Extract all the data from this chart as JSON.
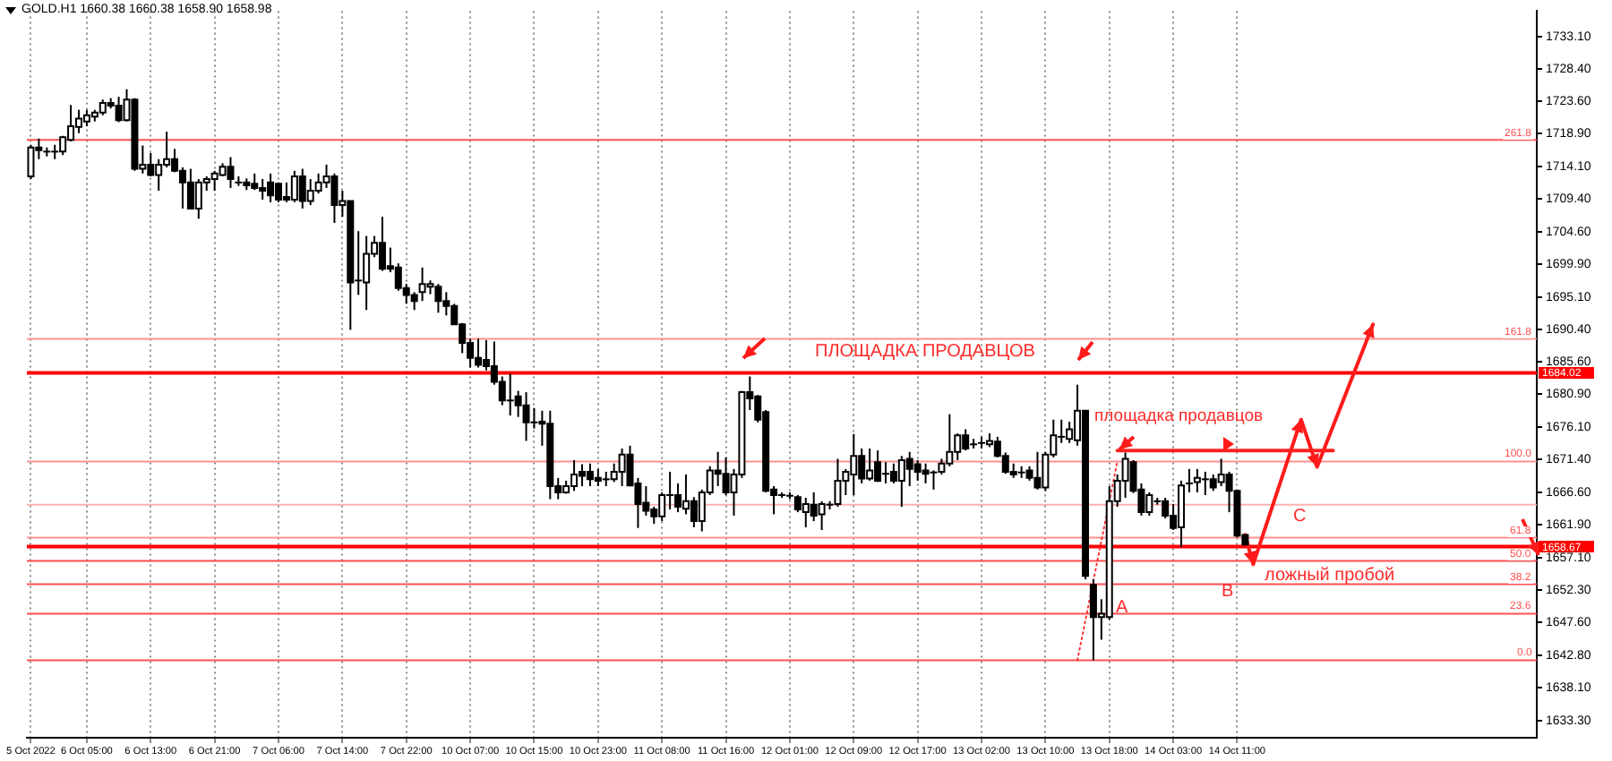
{
  "chart_data": {
    "type": "candlestick",
    "title": "GOLD.H1 1660.38 1660.38 1658.90 1658.98",
    "categories": [
      "5 Oct 2022",
      null,
      null,
      null,
      null,
      null,
      null,
      "6 Oct 05:00",
      null,
      null,
      null,
      null,
      null,
      null,
      null,
      "6 Oct 13:00",
      null,
      null,
      null,
      null,
      null,
      null,
      null,
      "6 Oct 21:00",
      null,
      null,
      null,
      null,
      null,
      null,
      null,
      "7 Oct 06:00",
      null,
      null,
      null,
      null,
      null,
      null,
      null,
      "7 Oct 14:00",
      null,
      null,
      null,
      null,
      null,
      null,
      null,
      "7 Oct 22:00",
      null,
      null,
      null,
      null,
      null,
      null,
      null,
      "10 Oct 07:00",
      null,
      null,
      null,
      null,
      null,
      null,
      null,
      "10 Oct 15:00",
      null,
      null,
      null,
      null,
      null,
      null,
      null,
      "10 Oct 23:00",
      null,
      null,
      null,
      null,
      null,
      null,
      null,
      "11 Oct 08:00",
      null,
      null,
      null,
      null,
      null,
      null,
      null,
      "11 Oct 16:00",
      null,
      null,
      null,
      null,
      null,
      null,
      null,
      "12 Oct 01:00",
      null,
      null,
      null,
      null,
      null,
      null,
      null,
      "12 Oct 09:00",
      null,
      null,
      null,
      null,
      null,
      null,
      null,
      "12 Oct 17:00",
      null,
      null,
      null,
      null,
      null,
      null,
      null,
      "13 Oct 02:00",
      null,
      null,
      null,
      null,
      null,
      null,
      null,
      "13 Oct 10:00",
      null,
      null,
      null,
      null,
      null,
      null,
      null,
      "13 Oct 18:00",
      null,
      null,
      null,
      null,
      null,
      null,
      null,
      "14 Oct 03:00",
      null,
      null,
      null,
      null,
      null,
      null,
      null,
      "14 Oct 11:00",
      null,
      null,
      null,
      null,
      null,
      null,
      null,
      null,
      null,
      null,
      null,
      null,
      null,
      null,
      null,
      null,
      null,
      null,
      null,
      null,
      null,
      null,
      null,
      null,
      null,
      null,
      null,
      null,
      null,
      null,
      null,
      null,
      null,
      null,
      null,
      null,
      null
    ],
    "color": "#000000",
    "colors": [
      "#ffffff",
      "#000000",
      "#000000",
      "#000000",
      "#ffffff",
      "#ffffff",
      "#ffffff",
      "#ffffff",
      "#ffffff",
      "#ffffff",
      "#000000",
      "#000000",
      "#ffffff",
      "#000000",
      "#ffffff",
      "#000000",
      "#ffffff",
      "#ffffff",
      "#000000",
      "#000000",
      "#000000",
      "#ffffff",
      "#ffffff",
      "#ffffff",
      "#ffffff",
      "#000000",
      "#000000",
      "#000000",
      "#000000",
      "#000000",
      "#000000",
      "#000000",
      "#000000",
      "#ffffff",
      "#000000",
      "#ffffff",
      "#ffffff",
      "#ffffff",
      "#000000",
      "#ffffff",
      "#000000",
      "#000000",
      "#ffffff",
      "#ffffff",
      "#000000",
      "#000000",
      "#000000",
      "#000000",
      "#000000",
      "#ffffff",
      "#ffffff",
      "#000000",
      "#000000",
      "#000000",
      "#000000",
      "#000000",
      "#000000",
      "#000000",
      "#000000",
      "#000000",
      "#000000",
      "#000000",
      "#000000",
      "#000000",
      "#000000",
      "#000000",
      "#000000",
      "#ffffff",
      "#ffffff",
      "#000000",
      "#000000",
      "#000000",
      "#000000",
      "#ffffff",
      "#ffffff",
      "#000000",
      "#000000",
      "#000000",
      "#000000",
      "#ffffff",
      "#000000",
      "#000000",
      "#ffffff",
      "#000000",
      "#ffffff",
      "#ffffff",
      "#000000",
      "#000000",
      "#ffffff",
      "#ffffff",
      "#000000",
      "#000000",
      "#000000",
      "#000000",
      "#000000",
      "#000000",
      "#000000",
      "#ffffff",
      "#000000",
      "#ffffff",
      "#000000",
      "#ffffff",
      "#ffffff",
      "#ffffff",
      "#000000",
      "#ffffff",
      "#000000",
      "#000000",
      "#000000",
      "#ffffff",
      "#000000",
      "#000000",
      "#000000",
      "#000000",
      "#ffffff",
      "#ffffff",
      "#ffffff",
      "#000000",
      "#000000",
      "#000000",
      "#ffffff",
      "#000000",
      "#000000",
      "#000000",
      "#000000",
      "#000000",
      "#000000",
      "#ffffff",
      "#ffffff",
      "#000000",
      "#ffffff",
      "#ffffff",
      "#000000",
      "#000000",
      "#ffffff",
      "#ffffff",
      "#ffffff",
      "#ffffff",
      "#000000",
      "#000000",
      "#ffffff",
      "#000000",
      "#000000",
      "#000000",
      "#ffffff",
      "#000000",
      "#ffffff",
      "#000000",
      "#000000",
      "#ffffff",
      "#000000",
      "#000000",
      "#000000",
      null,
      null,
      null,
      null,
      null,
      null,
      null,
      null,
      null,
      null,
      null,
      null,
      null,
      null,
      null,
      null,
      null,
      null,
      null,
      null,
      null,
      null,
      null,
      null,
      null,
      null,
      null,
      null,
      null,
      null,
      null,
      null,
      null,
      null,
      null,
      null
    ],
    "ohlc": [
      [
        1712.7,
        1717.3,
        1712.3,
        1716.9
      ],
      [
        1716.9,
        1718.2,
        1715.2,
        1716.5
      ],
      [
        1716.3,
        1716.9,
        1715.6,
        1716.3
      ],
      [
        1716.3,
        1717.3,
        1715.2,
        1716.3
      ],
      [
        1716.3,
        1718.6,
        1715.8,
        1718.4
      ],
      [
        1718.0,
        1723.1,
        1717.8,
        1720.0
      ],
      [
        1719.9,
        1722.4,
        1719.0,
        1721.1
      ],
      [
        1720.7,
        1722.4,
        1720.0,
        1721.6
      ],
      [
        1721.4,
        1722.4,
        1720.7,
        1722.0
      ],
      [
        1722.0,
        1723.9,
        1721.6,
        1723.4
      ],
      [
        1723.4,
        1724.1,
        1722.6,
        1723.0
      ],
      [
        1723.0,
        1724.3,
        1720.6,
        1720.9
      ],
      [
        1720.9,
        1725.4,
        1720.7,
        1723.9
      ],
      [
        1723.9,
        1724.1,
        1713.5,
        1713.8
      ],
      [
        1713.8,
        1717.2,
        1713.1,
        1714.4
      ],
      [
        1714.4,
        1716.1,
        1712.7,
        1712.9
      ],
      [
        1712.9,
        1715.2,
        1710.6,
        1714.4
      ],
      [
        1714.4,
        1719.2,
        1714.0,
        1715.2
      ],
      [
        1715.2,
        1716.7,
        1713.3,
        1713.5
      ],
      [
        1713.5,
        1714.0,
        1708.0,
        1711.8
      ],
      [
        1711.8,
        1713.8,
        1707.9,
        1708.0
      ],
      [
        1708.0,
        1712.3,
        1706.5,
        1711.8
      ],
      [
        1711.8,
        1712.7,
        1710.6,
        1712.3
      ],
      [
        1712.3,
        1713.5,
        1710.6,
        1713.1
      ],
      [
        1712.9,
        1714.6,
        1712.7,
        1714.1
      ],
      [
        1714.1,
        1715.5,
        1711.0,
        1712.3
      ],
      [
        1711.8,
        1712.7,
        1711.3,
        1711.8
      ],
      [
        1711.8,
        1712.4,
        1710.7,
        1711.4
      ],
      [
        1711.6,
        1713.1,
        1710.7,
        1711.0
      ],
      [
        1711.0,
        1712.3,
        1709.3,
        1710.6
      ],
      [
        1711.8,
        1713.1,
        1708.9,
        1709.9
      ],
      [
        1711.6,
        1711.8,
        1708.9,
        1709.3
      ],
      [
        1709.7,
        1711.8,
        1708.9,
        1709.3
      ],
      [
        1709.3,
        1713.5,
        1708.9,
        1712.7
      ],
      [
        1712.7,
        1713.8,
        1708.0,
        1709.1
      ],
      [
        1709.1,
        1712.3,
        1708.5,
        1710.6
      ],
      [
        1710.6,
        1713.1,
        1710.2,
        1711.8
      ],
      [
        1711.8,
        1714.4,
        1711.0,
        1712.7
      ],
      [
        1712.7,
        1713.1,
        1705.9,
        1708.5
      ],
      [
        1708.5,
        1710.6,
        1706.8,
        1709.1
      ],
      [
        1709.1,
        1709.1,
        1690.3,
        1697.2
      ],
      [
        1697.5,
        1704.7,
        1695.4,
        1697.5
      ],
      [
        1697.2,
        1704.0,
        1693.2,
        1701.4
      ],
      [
        1701.4,
        1704.0,
        1700.9,
        1703.0
      ],
      [
        1703.0,
        1706.8,
        1698.9,
        1699.2
      ],
      [
        1699.6,
        1702.3,
        1698.7,
        1699.2
      ],
      [
        1699.4,
        1700.0,
        1696.0,
        1696.4
      ],
      [
        1696.4,
        1697.0,
        1694.1,
        1695.4
      ],
      [
        1695.4,
        1695.8,
        1693.2,
        1694.5
      ],
      [
        1695.8,
        1699.4,
        1694.5,
        1697.0
      ],
      [
        1696.6,
        1697.5,
        1695.5,
        1697.0
      ],
      [
        1696.6,
        1697.0,
        1692.8,
        1694.5
      ],
      [
        1694.5,
        1695.8,
        1692.4,
        1693.8
      ],
      [
        1693.8,
        1694.1,
        1691.1,
        1691.1
      ],
      [
        1691.1,
        1691.3,
        1686.9,
        1688.4
      ],
      [
        1688.4,
        1689.0,
        1684.8,
        1686.2
      ],
      [
        1686.2,
        1689.0,
        1684.8,
        1685.2
      ],
      [
        1685.9,
        1688.8,
        1684.4,
        1685.0
      ],
      [
        1685.0,
        1688.6,
        1682.3,
        1682.7
      ],
      [
        1682.7,
        1683.5,
        1679.3,
        1680.0
      ],
      [
        1680.0,
        1683.9,
        1677.8,
        1680.0
      ],
      [
        1680.6,
        1681.4,
        1677.6,
        1679.3
      ],
      [
        1679.3,
        1681.2,
        1674.1,
        1676.8
      ],
      [
        1676.8,
        1678.9,
        1675.9,
        1676.8
      ],
      [
        1676.9,
        1678.5,
        1673.4,
        1676.6
      ],
      [
        1676.6,
        1678.5,
        1665.6,
        1667.5
      ],
      [
        1667.5,
        1668.7,
        1665.6,
        1666.6
      ],
      [
        1666.6,
        1668.3,
        1666.4,
        1667.5
      ],
      [
        1667.5,
        1671.3,
        1666.8,
        1669.2
      ],
      [
        1669.6,
        1670.7,
        1667.5,
        1669.0
      ],
      [
        1669.6,
        1670.8,
        1667.5,
        1668.5
      ],
      [
        1668.7,
        1670.0,
        1667.5,
        1668.3
      ],
      [
        1668.5,
        1669.6,
        1667.5,
        1668.5
      ],
      [
        1668.5,
        1670.8,
        1668.1,
        1669.6
      ],
      [
        1669.6,
        1673.0,
        1667.5,
        1672.1
      ],
      [
        1672.1,
        1673.4,
        1667.5,
        1667.6
      ],
      [
        1667.9,
        1668.7,
        1661.4,
        1664.9
      ],
      [
        1665.1,
        1667.5,
        1663.2,
        1663.9
      ],
      [
        1664.1,
        1664.5,
        1662.0,
        1663.1
      ],
      [
        1663.1,
        1666.6,
        1662.4,
        1666.2
      ],
      [
        1666.2,
        1669.6,
        1664.1,
        1666.2
      ],
      [
        1666.2,
        1667.9,
        1663.7,
        1664.5
      ],
      [
        1664.2,
        1669.2,
        1663.4,
        1665.3
      ],
      [
        1665.3,
        1665.9,
        1661.5,
        1662.4
      ],
      [
        1662.4,
        1667.0,
        1660.9,
        1666.6
      ],
      [
        1666.6,
        1670.4,
        1666.2,
        1669.8
      ],
      [
        1669.8,
        1672.5,
        1667.5,
        1669.3
      ],
      [
        1669.3,
        1671.7,
        1666.2,
        1666.6
      ],
      [
        1666.6,
        1670.0,
        1663.2,
        1669.2
      ],
      [
        1669.2,
        1681.4,
        1668.7,
        1681.2
      ],
      [
        1681.2,
        1683.5,
        1678.6,
        1680.3
      ],
      [
        1680.6,
        1680.8,
        1676.8,
        1677.2
      ],
      [
        1678.3,
        1678.6,
        1666.6,
        1666.8
      ],
      [
        1667.0,
        1667.5,
        1663.4,
        1666.2
      ],
      [
        1666.2,
        1666.6,
        1665.8,
        1666.2
      ],
      [
        1666.1,
        1666.6,
        1665.6,
        1666.1
      ],
      [
        1665.9,
        1666.2,
        1663.7,
        1664.1
      ],
      [
        1663.7,
        1665.8,
        1661.5,
        1664.9
      ],
      [
        1664.8,
        1666.6,
        1662.4,
        1663.2
      ],
      [
        1663.4,
        1665.3,
        1661.1,
        1664.9
      ],
      [
        1664.8,
        1665.3,
        1664.1,
        1664.8
      ],
      [
        1664.9,
        1671.5,
        1664.5,
        1668.3
      ],
      [
        1668.3,
        1670.0,
        1666.2,
        1669.6
      ],
      [
        1669.2,
        1675.1,
        1666.2,
        1671.9
      ],
      [
        1671.9,
        1673.0,
        1667.9,
        1668.6
      ],
      [
        1668.6,
        1673.0,
        1668.3,
        1669.8
      ],
      [
        1671.0,
        1672.7,
        1668.1,
        1668.3
      ],
      [
        1669.3,
        1671.0,
        1667.9,
        1669.3
      ],
      [
        1669.6,
        1670.8,
        1667.9,
        1668.3
      ],
      [
        1668.3,
        1671.9,
        1664.5,
        1671.3
      ],
      [
        1671.5,
        1672.5,
        1667.5,
        1670.0
      ],
      [
        1670.7,
        1671.3,
        1668.3,
        1669.6
      ],
      [
        1669.8,
        1670.8,
        1667.9,
        1669.3
      ],
      [
        1669.5,
        1669.8,
        1667.0,
        1669.5
      ],
      [
        1669.6,
        1671.5,
        1669.2,
        1670.8
      ],
      [
        1670.8,
        1678.0,
        1670.4,
        1672.5
      ],
      [
        1672.5,
        1675.2,
        1671.3,
        1674.9
      ],
      [
        1674.9,
        1675.8,
        1672.7,
        1673.0
      ],
      [
        1673.6,
        1674.4,
        1673.0,
        1673.6
      ],
      [
        1673.8,
        1674.7,
        1673.0,
        1673.8
      ],
      [
        1673.6,
        1675.2,
        1673.2,
        1674.1
      ],
      [
        1674.0,
        1674.7,
        1671.7,
        1671.9
      ],
      [
        1671.9,
        1672.4,
        1669.3,
        1669.6
      ],
      [
        1669.6,
        1670.8,
        1668.7,
        1669.2
      ],
      [
        1669.5,
        1670.4,
        1668.7,
        1669.5
      ],
      [
        1669.8,
        1670.4,
        1668.3,
        1668.7
      ],
      [
        1668.7,
        1672.5,
        1667.0,
        1667.3
      ],
      [
        1667.3,
        1672.5,
        1666.8,
        1672.1
      ],
      [
        1672.1,
        1677.2,
        1671.7,
        1674.9
      ],
      [
        1674.7,
        1677.2,
        1673.8,
        1674.7
      ],
      [
        1674.4,
        1676.9,
        1673.8,
        1675.8
      ],
      [
        1674.2,
        1682.3,
        1673.4,
        1678.5
      ],
      [
        1678.5,
        1678.6,
        1653.9,
        1654.4
      ],
      [
        1653.1,
        1653.9,
        1642.1,
        1648.4
      ],
      [
        1648.4,
        1651.0,
        1645.1,
        1648.9
      ],
      [
        1648.4,
        1667.5,
        1648.0,
        1665.3
      ],
      [
        1665.3,
        1669.2,
        1664.5,
        1668.3
      ],
      [
        1668.3,
        1672.4,
        1665.8,
        1671.5
      ],
      [
        1671.0,
        1671.3,
        1666.5,
        1666.8
      ],
      [
        1667.0,
        1667.9,
        1663.2,
        1663.7
      ],
      [
        1663.7,
        1666.6,
        1663.2,
        1666.2
      ],
      [
        1665.3,
        1665.8,
        1664.8,
        1665.3
      ],
      [
        1665.3,
        1665.8,
        1662.8,
        1663.2
      ],
      [
        1663.2,
        1664.9,
        1661.1,
        1661.4
      ],
      [
        1661.5,
        1668.3,
        1658.6,
        1667.6
      ],
      [
        1667.9,
        1670.0,
        1666.6,
        1667.9
      ],
      [
        1668.1,
        1670.0,
        1666.6,
        1668.7
      ],
      [
        1668.5,
        1669.6,
        1666.2,
        1668.5
      ],
      [
        1668.5,
        1669.2,
        1666.8,
        1667.3
      ],
      [
        1668.1,
        1671.5,
        1667.5,
        1669.2
      ],
      [
        1669.2,
        1669.6,
        1663.7,
        1666.8
      ],
      [
        1666.8,
        1667.0,
        1660.0,
        1660.3
      ],
      [
        1660.38,
        1660.38,
        1658.9,
        1658.98
      ],
      null,
      null,
      null,
      null,
      null,
      null,
      null,
      null,
      null,
      null,
      null,
      null,
      null,
      null,
      null,
      null,
      null,
      null,
      null,
      null,
      null,
      null,
      null,
      null,
      null,
      null,
      null,
      null,
      null,
      null,
      null,
      null,
      null,
      null,
      null,
      null
    ],
    "ylim": [
      1630.8,
      1736.8
    ],
    "yticks": [
      {
        "value": 1733.1,
        "label": "1733.10"
      },
      {
        "value": 1728.4,
        "label": "1728.40"
      },
      {
        "value": 1723.6,
        "label": "1723.60"
      },
      {
        "value": 1718.9,
        "label": "1718.90"
      },
      {
        "value": 1714.1,
        "label": "1714.10"
      },
      {
        "value": 1709.4,
        "label": "1709.40"
      },
      {
        "value": 1704.6,
        "label": "1704.60"
      },
      {
        "value": 1699.9,
        "label": "1699.90"
      },
      {
        "value": 1695.1,
        "label": "1695.10"
      },
      {
        "value": 1690.4,
        "label": "1690.40"
      },
      {
        "value": 1685.6,
        "label": "1685.60"
      },
      {
        "value": 1680.9,
        "label": "1680.90"
      },
      {
        "value": 1676.1,
        "label": "1676.10"
      },
      {
        "value": 1671.4,
        "label": "1671.40"
      },
      {
        "value": 1666.6,
        "label": "1666.60"
      },
      {
        "value": 1661.9,
        "label": "1661.90"
      },
      {
        "value": 1657.1,
        "label": "1657.10"
      },
      {
        "value": 1652.3,
        "label": "1652.30"
      },
      {
        "value": 1647.6,
        "label": "1647.60"
      },
      {
        "value": 1642.8,
        "label": "1642.80"
      },
      {
        "value": 1638.1,
        "label": "1638.10"
      },
      {
        "value": 1633.3,
        "label": "1633.30"
      }
    ],
    "grid": "x",
    "ref_lines": [
      {
        "axis": "y",
        "value": 1684.02,
        "label": "1684.02",
        "color": "#ff0000"
      },
      {
        "axis": "y",
        "value": 1658.67,
        "label": "1658.67",
        "color": "#ff0000"
      },
      {
        "axis": "y",
        "value": 1642.1,
        "color": "#ff5050"
      },
      {
        "axis": "y",
        "value": 1648.9,
        "color": "#ff5050"
      },
      {
        "axis": "y",
        "value": 1653.2,
        "color": "#ff5050"
      },
      {
        "axis": "y",
        "value": 1656.6,
        "color": "#ff5050"
      },
      {
        "axis": "y",
        "value": 1660.0,
        "color": "#ff9090"
      },
      {
        "axis": "y",
        "value": 1671.1,
        "color": "#ff9090"
      },
      {
        "axis": "y",
        "value": 1689.0,
        "color": "#ff9090"
      },
      {
        "axis": "y",
        "value": 1718.0,
        "color": "#ff5050"
      },
      {
        "axis": "y",
        "value": 1664.8,
        "color": "#ffb0b0"
      }
    ],
    "series": [
      {
        "type": "line",
        "color": "#ff3030",
        "line_style": "dotted",
        "values": [
          null,
          null,
          null,
          null,
          null,
          null,
          null,
          null,
          null,
          null,
          null,
          null,
          null,
          null,
          null,
          null,
          null,
          null,
          null,
          null,
          null,
          null,
          null,
          null,
          null,
          null,
          null,
          null,
          null,
          null,
          null,
          null,
          null,
          null,
          null,
          null,
          null,
          null,
          null,
          null,
          null,
          null,
          null,
          null,
          null,
          null,
          null,
          null,
          null,
          null,
          null,
          null,
          null,
          null,
          null,
          null,
          null,
          null,
          null,
          null,
          null,
          null,
          null,
          null,
          null,
          null,
          null,
          null,
          null,
          null,
          null,
          null,
          null,
          null,
          null,
          null,
          null,
          null,
          null,
          null,
          null,
          null,
          null,
          null,
          null,
          null,
          null,
          null,
          null,
          null,
          null,
          null,
          null,
          null,
          null,
          null,
          null,
          null,
          null,
          null,
          null,
          null,
          null,
          null,
          null,
          null,
          null,
          null,
          null,
          null,
          null,
          null,
          null,
          null,
          null,
          null,
          null,
          null,
          null,
          null,
          null,
          null,
          null,
          null,
          null,
          null,
          null,
          null,
          null,
          null,
          null,
          1642.1,
          null,
          null,
          null,
          null,
          1671.1,
          null,
          null,
          null,
          null,
          null,
          null,
          null,
          null,
          null,
          null,
          null,
          null,
          null,
          null,
          null,
          null,
          null,
          null,
          null,
          null,
          null,
          null,
          null,
          null,
          null,
          null,
          null,
          null,
          null,
          null,
          null,
          null,
          null,
          null,
          null,
          null,
          null,
          null,
          null,
          null,
          null,
          null,
          null,
          null,
          null,
          null,
          null,
          null,
          null,
          null,
          null,
          null
        ]
      },
      {
        "type": "line",
        "color": "#ff2020",
        "line_style": "solid",
        "values": [
          null,
          null,
          null,
          null,
          null,
          null,
          null,
          null,
          null,
          null,
          null,
          null,
          null,
          null,
          null,
          null,
          null,
          null,
          null,
          null,
          null,
          null,
          null,
          null,
          null,
          null,
          null,
          null,
          null,
          null,
          null,
          null,
          null,
          null,
          null,
          null,
          null,
          null,
          null,
          null,
          null,
          null,
          null,
          null,
          null,
          null,
          null,
          null,
          null,
          null,
          null,
          null,
          null,
          null,
          null,
          null,
          null,
          null,
          null,
          null,
          null,
          null,
          null,
          null,
          null,
          null,
          null,
          null,
          null,
          null,
          null,
          null,
          null,
          null,
          null,
          null,
          null,
          null,
          null,
          null,
          null,
          null,
          null,
          null,
          null,
          null,
          null,
          null,
          null,
          null,
          null,
          null,
          null,
          null,
          null,
          null,
          null,
          null,
          null,
          null,
          null,
          null,
          null,
          null,
          null,
          null,
          null,
          null,
          null,
          null,
          null,
          null,
          null,
          null,
          null,
          null,
          null,
          null,
          null,
          null,
          null,
          null,
          null,
          null,
          null,
          null,
          null,
          null,
          null,
          null,
          null,
          null,
          null,
          null,
          null,
          null,
          1672.7,
          1672.7,
          1672.7,
          1672.7,
          1672.7,
          1672.7,
          1672.7,
          1672.7,
          1672.7,
          1672.7,
          1672.7,
          1672.7,
          1672.7,
          1672.7,
          1672.7,
          1672.7,
          1672.7,
          1672.7,
          1672.7,
          1672.7,
          1672.7,
          1672.7,
          1672.7,
          1672.7,
          1672.7,
          1672.7,
          1672.7,
          1672.7,
          null,
          null,
          null,
          null,
          null,
          null,
          null,
          null,
          null,
          null,
          null,
          null,
          null,
          null,
          null,
          null,
          null,
          null,
          null,
          null,
          null,
          null,
          null,
          null,
          null
        ]
      },
      {
        "type": "line",
        "color": "#ff1a1a",
        "line_style": "solid",
        "values": [
          null,
          null,
          null,
          null,
          null,
          null,
          null,
          null,
          null,
          null,
          null,
          null,
          null,
          null,
          null,
          null,
          null,
          null,
          null,
          null,
          null,
          null,
          null,
          null,
          null,
          null,
          null,
          null,
          null,
          null,
          null,
          null,
          null,
          null,
          null,
          null,
          null,
          null,
          null,
          null,
          null,
          null,
          null,
          null,
          null,
          null,
          null,
          null,
          null,
          null,
          null,
          null,
          null,
          null,
          null,
          null,
          null,
          null,
          null,
          null,
          null,
          null,
          null,
          null,
          null,
          null,
          null,
          null,
          null,
          null,
          null,
          null,
          null,
          null,
          null,
          null,
          null,
          null,
          null,
          null,
          null,
          null,
          null,
          null,
          null,
          null,
          null,
          null,
          null,
          null,
          null,
          null,
          null,
          null,
          null,
          null,
          null,
          null,
          null,
          null,
          null,
          null,
          null,
          null,
          null,
          null,
          null,
          null,
          null,
          null,
          null,
          null,
          null,
          null,
          null,
          null,
          null,
          null,
          null,
          null,
          null,
          null,
          null,
          null,
          null,
          null,
          null,
          null,
          null,
          null,
          null,
          null,
          null,
          null,
          null,
          null,
          null,
          null,
          null,
          null,
          null,
          null,
          null,
          null,
          null,
          null,
          null,
          null,
          null,
          null,
          null,
          null,
          1660.4,
          1656.1,
          null,
          null,
          null,
          null,
          null,
          1677.2,
          null,
          1670.3,
          null,
          null,
          null,
          null,
          null,
          null,
          1691.1,
          null,
          null,
          null,
          null,
          null,
          null,
          null,
          null,
          null,
          null,
          null,
          null,
          null,
          null,
          null,
          null,
          null,
          null,
          null,
          null
        ]
      }
    ],
    "annotations": [
      "ПЛОЩАДКА ПРОДАВЦОВ",
      "площадка продавцов",
      "A",
      "B",
      "C",
      "ложный пробой",
      {
        "text": "0.0",
        "y": 1642.1
      },
      {
        "text": "23.6",
        "y": 1648.9
      },
      {
        "text": "38.2",
        "y": 1653.2
      },
      {
        "text": "50.0",
        "y": 1656.6
      },
      {
        "text": "61.8",
        "y": 1660.0
      },
      {
        "text": "100.0",
        "y": 1671.1
      },
      {
        "text": "161.8",
        "y": 1689.0
      },
      {
        "text": "261.8",
        "y": 1718.0
      }
    ]
  }
}
